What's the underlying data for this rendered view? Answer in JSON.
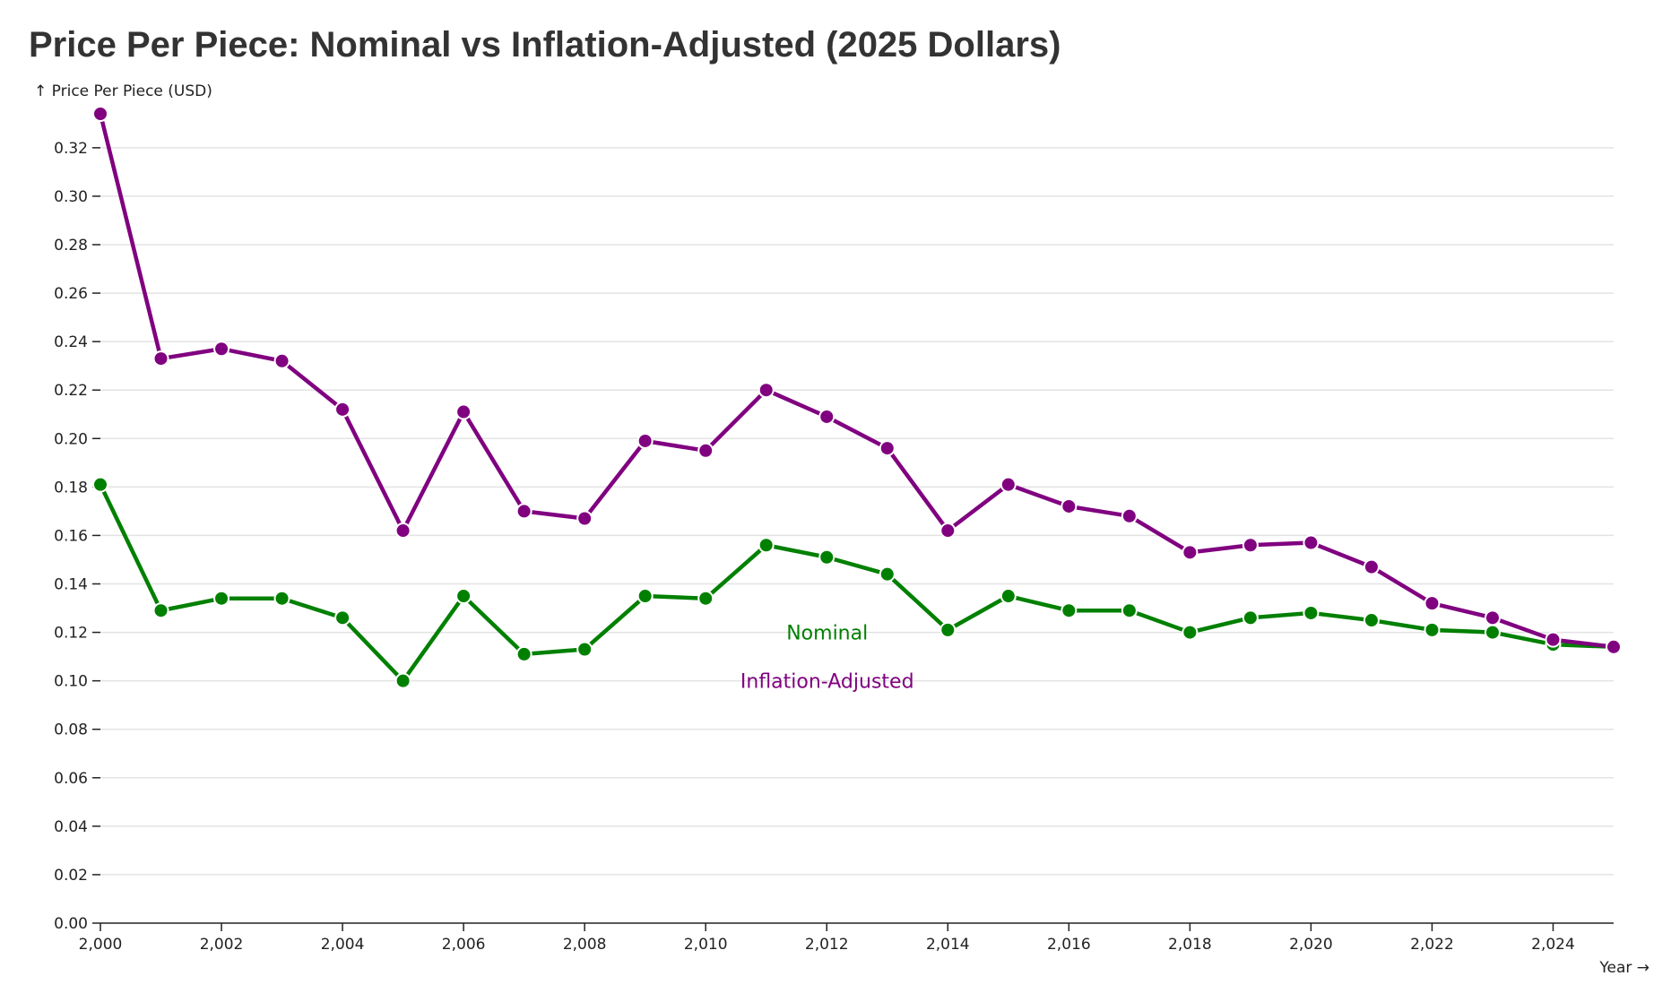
{
  "chart_data": {
    "type": "line",
    "title": "Price Per Piece: Nominal vs Inflation-Adjusted (2025 Dollars)",
    "ylabel": "↑ Price Per Piece (USD)",
    "xlabel": "Year →",
    "ylim": [
      0,
      0.334
    ],
    "xlim": [
      2000,
      2025
    ],
    "grid": true,
    "yticks": [
      0.0,
      0.02,
      0.04,
      0.06,
      0.08,
      0.1,
      0.12,
      0.14,
      0.16,
      0.18,
      0.2,
      0.22,
      0.24,
      0.26,
      0.28,
      0.3,
      0.32
    ],
    "ytick_labels": [
      "0.00",
      "0.02",
      "0.04",
      "0.06",
      "0.08",
      "0.10",
      "0.12",
      "0.14",
      "0.16",
      "0.18",
      "0.20",
      "0.22",
      "0.24",
      "0.26",
      "0.28",
      "0.30",
      "0.32"
    ],
    "xticks": [
      2000,
      2002,
      2004,
      2006,
      2008,
      2010,
      2012,
      2014,
      2016,
      2018,
      2020,
      2022,
      2024
    ],
    "xtick_labels": [
      "2,000",
      "2,002",
      "2,004",
      "2,006",
      "2,008",
      "2,010",
      "2,012",
      "2,014",
      "2,016",
      "2,018",
      "2,020",
      "2,022",
      "2,024"
    ],
    "x": [
      2000,
      2001,
      2002,
      2003,
      2004,
      2005,
      2006,
      2007,
      2008,
      2009,
      2010,
      2011,
      2012,
      2013,
      2014,
      2015,
      2016,
      2017,
      2018,
      2019,
      2020,
      2021,
      2022,
      2023,
      2024,
      2025
    ],
    "series": [
      {
        "name": "Nominal",
        "color": "#008000",
        "label_year": 2011,
        "label_value": 0.12,
        "values": [
          0.181,
          0.129,
          0.134,
          0.134,
          0.126,
          0.1,
          0.135,
          0.111,
          0.113,
          0.135,
          0.134,
          0.156,
          0.151,
          0.144,
          0.121,
          0.135,
          0.129,
          0.129,
          0.12,
          0.126,
          0.128,
          0.125,
          0.121,
          0.12,
          0.115,
          0.114
        ]
      },
      {
        "name": "Inflation-Adjusted",
        "color": "#800080",
        "label_year": 2011,
        "label_value": 0.1,
        "values": [
          0.334,
          0.233,
          0.237,
          0.232,
          0.212,
          0.162,
          0.211,
          0.17,
          0.167,
          0.199,
          0.195,
          0.22,
          0.209,
          0.196,
          0.162,
          0.181,
          0.172,
          0.168,
          0.153,
          0.156,
          0.157,
          0.147,
          0.132,
          0.126,
          0.117,
          0.114
        ]
      }
    ]
  }
}
